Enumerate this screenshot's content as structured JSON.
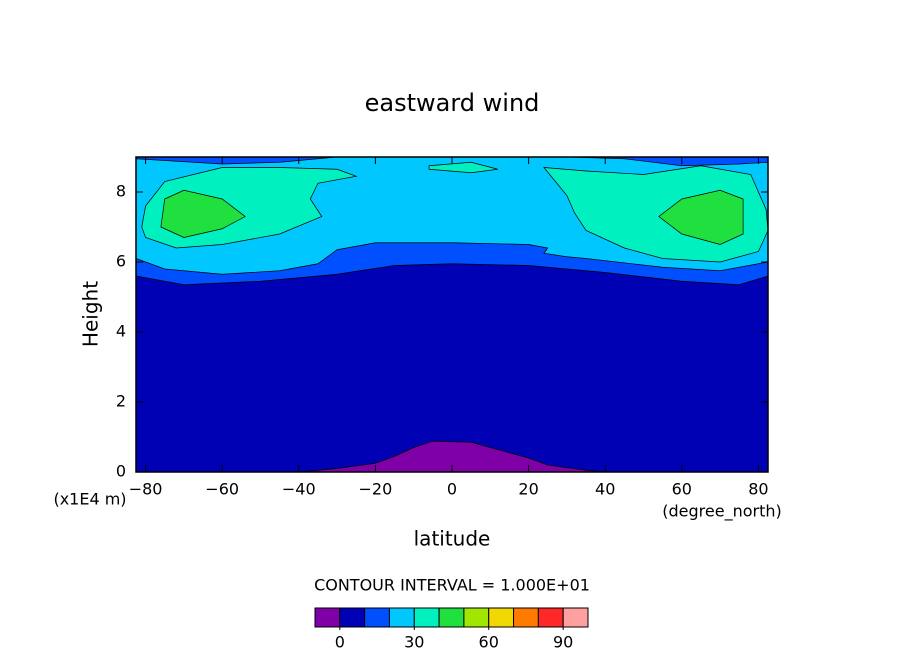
{
  "chart_data": {
    "type": "contour",
    "title": "eastward wind",
    "x_label": "latitude",
    "y_label": "Height",
    "x_unit": "(degree_north)",
    "y_unit": "(x1E4 m)",
    "xlim": [
      -82.5,
      82.5
    ],
    "ylim": [
      0,
      9
    ],
    "xticks": [
      {
        "value": -80,
        "label": "−80"
      },
      {
        "value": -60,
        "label": "−60"
      },
      {
        "value": -40,
        "label": "−40"
      },
      {
        "value": -20,
        "label": "−20"
      },
      0,
      20,
      40,
      60,
      80
    ],
    "yticks": [
      0,
      2,
      4,
      6,
      8
    ],
    "regions": [
      {
        "level": 0,
        "x": [
          -82.5,
          82.5,
          82.5,
          -82.5
        ],
        "y": [
          0,
          0,
          9,
          9
        ]
      },
      {
        "level": -10,
        "x": [
          -40,
          -30,
          -20,
          -15,
          -10,
          -5,
          5,
          10,
          20,
          25,
          35,
          40
        ],
        "y": [
          0,
          0.1,
          0.25,
          0.45,
          0.7,
          0.88,
          0.85,
          0.7,
          0.4,
          0.2,
          0.05,
          0
        ]
      },
      {
        "level": 10,
        "x": [
          -82.5,
          -70,
          -50,
          -30,
          -15,
          0,
          20,
          40,
          60,
          75,
          82.5,
          82.5,
          -82.5
        ],
        "y": [
          5.6,
          5.35,
          5.45,
          5.65,
          5.9,
          5.95,
          5.9,
          5.7,
          5.45,
          5.35,
          5.6,
          9,
          9
        ]
      },
      {
        "level": 20,
        "x": [
          -82.5,
          -75,
          -60,
          -45,
          -35,
          -30,
          -20,
          0,
          20,
          25,
          24,
          30,
          35,
          55,
          70,
          82.5,
          82.5,
          75,
          60,
          45,
          30,
          10,
          -10,
          -30,
          -45,
          -60,
          -75,
          -82.5
        ],
        "y": [
          6.1,
          5.8,
          5.65,
          5.75,
          5.95,
          6.35,
          6.55,
          6.55,
          6.5,
          6.4,
          6.25,
          6.15,
          6.1,
          5.85,
          5.75,
          6.0,
          8.85,
          8.8,
          8.75,
          8.95,
          9,
          9,
          9,
          9,
          8.85,
          8.8,
          8.9,
          8.95
        ]
      },
      {
        "level": 30,
        "x": [
          -81,
          -80,
          -75,
          -60,
          -45,
          -30,
          -25,
          -35,
          -37,
          -34,
          -45,
          -60,
          -72,
          -80
        ],
        "y": [
          7.0,
          7.6,
          8.3,
          8.7,
          8.7,
          8.65,
          8.45,
          8.25,
          7.8,
          7.3,
          6.8,
          6.5,
          6.4,
          6.7
        ]
      },
      {
        "level": 30,
        "x": [
          24,
          35,
          50,
          65,
          78,
          82,
          82.5,
          80,
          70,
          55,
          45,
          35,
          32,
          30,
          27
        ],
        "y": [
          8.7,
          8.6,
          8.5,
          8.75,
          8.5,
          7.5,
          6.9,
          6.3,
          6.0,
          6.1,
          6.4,
          6.9,
          7.4,
          7.9,
          8.3
        ]
      },
      {
        "level": 30,
        "x": [
          -6,
          5,
          12,
          5,
          -6
        ],
        "y": [
          8.75,
          8.85,
          8.65,
          8.55,
          8.65
        ]
      },
      {
        "level": 40,
        "x": [
          -75,
          -70,
          -60,
          -54,
          -60,
          -70,
          -76
        ],
        "y": [
          7.8,
          8.05,
          7.8,
          7.3,
          6.95,
          6.7,
          7.0
        ]
      },
      {
        "level": 40,
        "x": [
          54,
          60,
          70,
          76,
          76,
          70,
          60
        ],
        "y": [
          7.3,
          7.8,
          8.05,
          7.8,
          6.8,
          6.5,
          6.8
        ]
      }
    ],
    "colorbar": {
      "title": "CONTOUR INTERVAL = 1.000E+01",
      "clim": [
        -10,
        100
      ],
      "colors": [
        "#8000a8",
        "#0000b4",
        "#0050ff",
        "#00c8ff",
        "#00f0c0",
        "#20e040",
        "#a0e600",
        "#f0d800",
        "#ff7a00",
        "#ff2828",
        "#ffa0a0"
      ],
      "ticks": [
        0,
        30,
        60,
        90
      ]
    }
  }
}
